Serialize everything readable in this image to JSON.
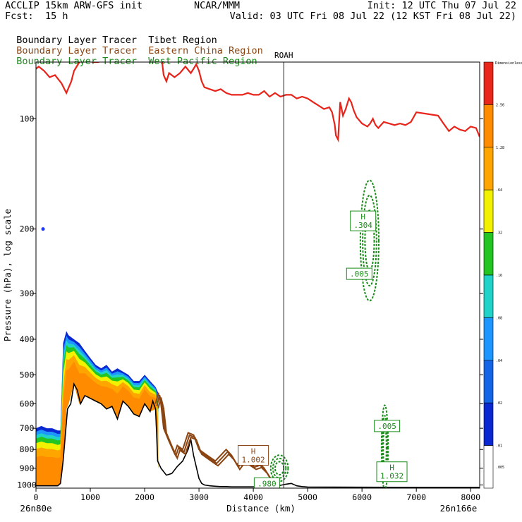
{
  "header": {
    "left_line1": "ACCLIP 15km ARW-GFS init",
    "center_line1": "NCAR/MMM",
    "right_line1": "Init: 12 UTC Thu 07 Jul 22",
    "fcst_label": "Fcst:",
    "fcst_value": "15 h",
    "valid_line": "Valid: 03 UTC Fri 08 Jul 22 (12 KST Fri 08 Jul 22)"
  },
  "tracers": [
    {
      "label": "Boundary Layer Tracer",
      "region": "Tibet Region",
      "color": "#000000"
    },
    {
      "label": "Boundary Layer Tracer",
      "region": "Eastern China Region",
      "color": "#8b4513"
    },
    {
      "label": "Boundary Layer Tracer",
      "region": "West Pacific Region",
      "color": "#1a8c1a"
    }
  ],
  "colors": {
    "tropopause": "#e8231a",
    "eastern_china": "#8b4513",
    "west_pacific": "#1a8c1a",
    "terrain": "#000000",
    "marker": "#4a4a4a"
  },
  "colorbar": {
    "top_label": "Dimensionless",
    "labels": [
      "2.56",
      "1.28",
      ".64",
      ".32",
      ".16",
      ".08",
      ".04",
      ".02",
      ".01",
      ".005"
    ],
    "colors": [
      "#e8261c",
      "#ff8c00",
      "#ffa500",
      "#f2f200",
      "#22c522",
      "#20d2c8",
      "#1e96ff",
      "#1464e6",
      "#0a28d2",
      "#ffffff"
    ]
  },
  "chart_data": {
    "type": "cross-section",
    "ylabel": "Pressure (hPa), log scale",
    "xlabel": "Distance (km)",
    "xlim": [
      0,
      8166
    ],
    "ylim": [
      1020,
      70
    ],
    "x_ticks": [
      0,
      1000,
      2000,
      3000,
      4000,
      5000,
      6000,
      7000,
      8000
    ],
    "y_ticks": [
      100,
      200,
      300,
      400,
      500,
      600,
      700,
      800,
      900,
      1000
    ],
    "endpoint_left": "26n80e",
    "endpoint_right": "26n166e",
    "marker": {
      "label": "ROAH",
      "distance_km": 4560
    },
    "tropopause_series": {
      "name": "Tropopause",
      "distance": [
        0,
        50,
        150,
        250,
        350,
        470,
        560,
        650,
        700,
        800,
        900,
        1050,
        1150,
        1250,
        1400,
        1480,
        1530,
        1580,
        1650,
        1800,
        1900,
        2000,
        2100,
        2200,
        2300,
        2350,
        2400,
        2450,
        2550,
        2650,
        2750,
        2850,
        2900,
        2950,
        3000,
        3050,
        3100,
        3200,
        3300,
        3400,
        3500,
        3600,
        3700,
        3800,
        3900,
        4000,
        4100,
        4200,
        4300,
        4400,
        4500,
        4600,
        4700,
        4800,
        4900,
        5000,
        5100,
        5200,
        5300,
        5400,
        5450,
        5500,
        5520,
        5560,
        5600,
        5650,
        5700,
        5760,
        5800,
        5850,
        5900,
        6000,
        6100,
        6150,
        6200,
        6250,
        6300,
        6400,
        6500,
        6600,
        6700,
        6800,
        6900,
        7000,
        7200,
        7400,
        7500,
        7600,
        7700,
        7800,
        7900,
        8000,
        8100,
        8166
      ],
      "pressure": [
        73,
        72,
        74,
        77,
        76,
        80,
        85,
        79,
        74,
        70,
        69,
        70,
        70,
        66,
        66,
        63,
        68,
        62,
        68,
        68,
        66,
        65,
        63,
        68,
        66,
        76,
        79,
        75,
        77,
        75,
        72,
        75,
        73,
        71,
        74,
        79,
        82,
        83,
        84,
        83,
        85,
        86,
        86,
        86,
        85,
        86,
        86,
        84,
        87,
        85,
        87,
        86,
        86,
        88,
        87,
        88,
        90,
        92,
        94,
        93,
        96,
        104,
        111,
        114,
        90,
        98,
        94,
        88,
        90,
        95,
        99,
        103,
        105,
        103,
        100,
        104,
        106,
        102,
        103,
        104,
        103,
        104,
        102,
        96,
        97,
        98,
        103,
        108,
        105,
        107,
        108,
        105,
        106,
        112
      ]
    },
    "terrain_series": {
      "name": "Terrain",
      "distance": [
        0,
        200,
        400,
        450,
        500,
        580,
        640,
        700,
        760,
        820,
        900,
        1000,
        1100,
        1200,
        1300,
        1400,
        1500,
        1600,
        1700,
        1800,
        1900,
        2000,
        2100,
        2150,
        2200,
        2220,
        2240,
        2300,
        2400,
        2500,
        2600,
        2700,
        2800,
        2850,
        2900,
        3000,
        3050,
        3100,
        3200,
        3300,
        3400,
        3500,
        3600,
        3700,
        3800,
        3900,
        4000,
        4100,
        4200,
        4300,
        4400,
        4500,
        4600,
        4700,
        4800,
        4900,
        5000,
        6000,
        7000,
        8000,
        8166
      ],
      "pressure": [
        1005,
        1005,
        1005,
        990,
        860,
        620,
        600,
        530,
        550,
        600,
        570,
        580,
        590,
        600,
        620,
        610,
        660,
        590,
        610,
        640,
        650,
        600,
        630,
        590,
        620,
        720,
        860,
        900,
        940,
        930,
        890,
        860,
        800,
        750,
        830,
        960,
        990,
        1000,
        1005,
        1008,
        1010,
        1010,
        1012,
        1012,
        1012,
        1012,
        1012,
        1012,
        1010,
        1008,
        1005,
        1002,
        995,
        990,
        1005,
        1010,
        1013,
        1014,
        1015,
        1015,
        1015
      ]
    },
    "tibet_shading": {
      "name": "Tibet Region tracer",
      "distance": [
        0,
        100,
        200,
        300,
        400,
        450,
        500,
        560,
        600,
        700,
        800,
        900,
        1000,
        1100,
        1200,
        1300,
        1400,
        1500,
        1600,
        1700,
        1800,
        1900,
        2000,
        2100,
        2200,
        2250
      ],
      "top_pressure": [
        700,
        690,
        700,
        700,
        710,
        710,
        410,
        380,
        390,
        400,
        410,
        430,
        450,
        470,
        480,
        470,
        490,
        480,
        490,
        500,
        520,
        520,
        500,
        520,
        540,
        560
      ]
    },
    "eastern_china_series": {
      "name": "Eastern China Region tracer",
      "distance": [
        2200,
        2250,
        2300,
        2350,
        2450,
        2550,
        2600,
        2700,
        2800,
        2900,
        3000,
        3100,
        3200,
        3300,
        3400,
        3500,
        3600,
        3700,
        3800,
        3900,
        4000,
        4100,
        4200,
        4300,
        4400
      ],
      "pressure": [
        600,
        560,
        600,
        700,
        760,
        820,
        780,
        800,
        720,
        730,
        800,
        820,
        840,
        860,
        830,
        800,
        830,
        880,
        840,
        860,
        880,
        870,
        900,
        950,
        990
      ]
    },
    "labels": [
      {
        "text": "H",
        "value": "1.002",
        "distance_km": 4000,
        "pressure": 830,
        "region": "Eastern China"
      },
      {
        "text": "",
        "value": ".980",
        "distance_km": 4250,
        "pressure": 990,
        "region": "West Pacific"
      },
      {
        "text": "H",
        "value": ".304",
        "distance_km": 6020,
        "pressure": 190,
        "region": "West Pacific"
      },
      {
        "text": "",
        "value": ".005",
        "distance_km": 5950,
        "pressure": 265,
        "region": "West Pacific"
      },
      {
        "text": "",
        "value": ".005",
        "distance_km": 6460,
        "pressure": 690,
        "region": "West Pacific"
      },
      {
        "text": "H",
        "value": "1.032",
        "distance_km": 6550,
        "pressure": 920,
        "region": "West Pacific"
      }
    ],
    "west_pacific_contours": [
      {
        "center_km": 6140,
        "center_p": 215,
        "top_p": 150,
        "bottom_p": 320,
        "half_width_km": 170
      },
      {
        "center_km": 6420,
        "center_p": 790,
        "top_p": 590,
        "bottom_p": 1005,
        "half_width_km": 60
      },
      {
        "center_km": 4480,
        "center_p": 900,
        "top_p": 840,
        "bottom_p": 990,
        "half_width_km": 160
      }
    ],
    "blue_dot": {
      "distance_km": 130,
      "pressure": 200
    }
  }
}
